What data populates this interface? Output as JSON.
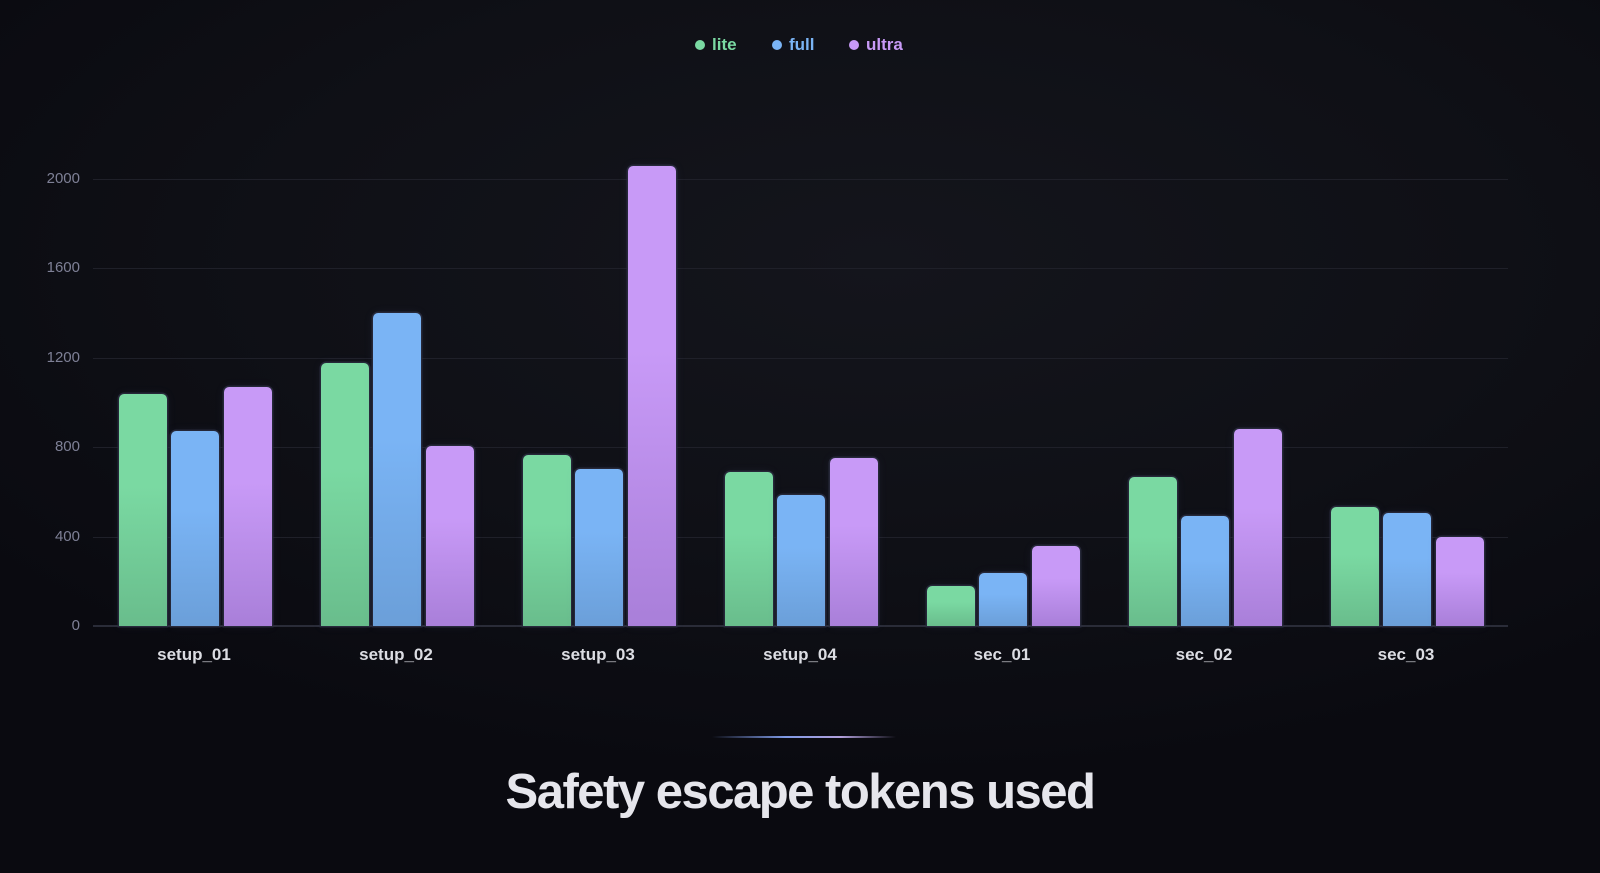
{
  "legend": [
    {
      "label": "lite",
      "color": "#7ad9a2"
    },
    {
      "label": "full",
      "color": "#7ab4f5"
    },
    {
      "label": "ultra",
      "color": "#c89af7"
    }
  ],
  "title": "Safety escape tokens used",
  "chart_data": {
    "type": "bar",
    "title": "Safety escape tokens used",
    "xlabel": "",
    "ylabel": "",
    "categories": [
      "setup_01",
      "setup_02",
      "setup_03",
      "setup_04",
      "sec_01",
      "sec_02",
      "sec_03"
    ],
    "series": [
      {
        "name": "lite",
        "color": "#7ad9a2",
        "color_bottom": "#69bd8c",
        "values": [
          1040,
          1178,
          765,
          688,
          180,
          665,
          534
        ]
      },
      {
        "name": "full",
        "color": "#7ab4f5",
        "color_bottom": "#6b9fd9",
        "values": [
          872,
          1399,
          701,
          586,
          236,
          494,
          504
        ]
      },
      {
        "name": "ultra",
        "color": "#c89af7",
        "color_bottom": "#a97fd9",
        "values": [
          1070,
          807,
          2060,
          750,
          359,
          880,
          397
        ]
      }
    ],
    "yticks": [
      0,
      400,
      800,
      1200,
      1600,
      2000
    ],
    "ylim": [
      0,
      2000
    ],
    "grid": true,
    "legend_position": "top-center"
  }
}
